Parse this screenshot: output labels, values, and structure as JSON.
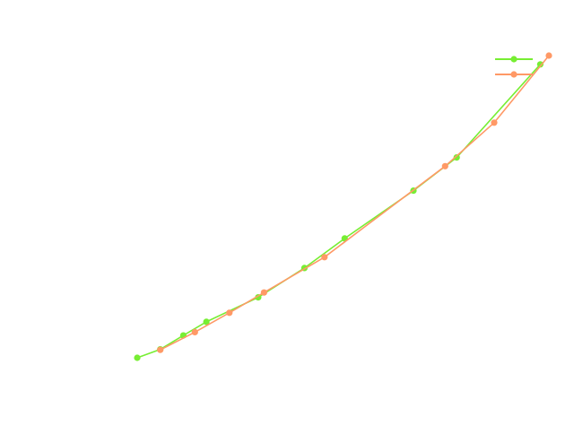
{
  "chart_data": {
    "type": "line",
    "title": "",
    "xlabel": "",
    "ylabel": "",
    "axes_visible": false,
    "grid": false,
    "legend": {
      "placement": "top-right",
      "labels_visible": false
    },
    "xlim": [
      0,
      100
    ],
    "ylim": [
      0,
      100
    ],
    "series": [
      {
        "color": "#77ee33",
        "marker": "circle",
        "x": [
          0,
          5.6,
          11.2,
          16.8,
          29.4,
          40.6,
          50.4,
          67.1,
          77.6,
          97.9
        ],
        "y": [
          0,
          2.8,
          7.4,
          11.9,
          20.0,
          29.7,
          39.5,
          55.3,
          66.3,
          97.1
        ]
      },
      {
        "color": "#ff9966",
        "marker": "circle",
        "x": [
          5.6,
          14.0,
          22.4,
          30.8,
          45.5,
          74.8,
          86.7,
          100.0
        ],
        "y": [
          2.6,
          8.5,
          14.9,
          21.6,
          33.3,
          63.4,
          77.8,
          100.0
        ]
      }
    ]
  }
}
